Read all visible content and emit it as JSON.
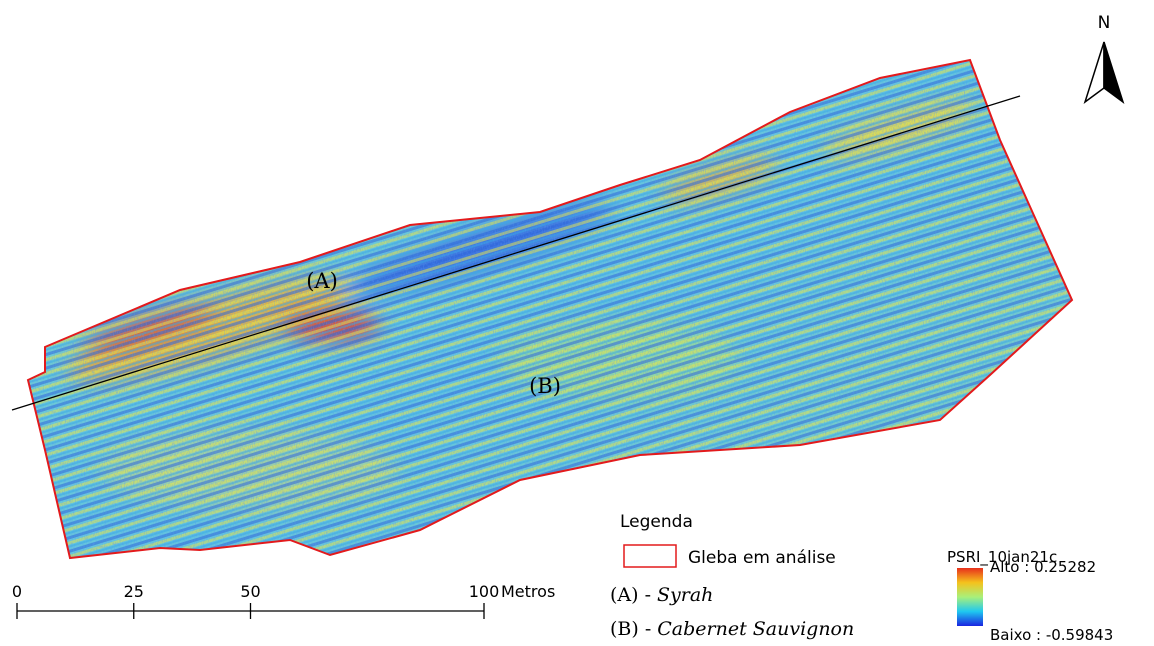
{
  "north": "N",
  "map_labels": [
    "(A)",
    "(B)"
  ],
  "legend": {
    "title": "Legenda",
    "boundary_label": "Gleba em análise",
    "items": [
      {
        "code": "(A) -",
        "name": "Syrah"
      },
      {
        "code": "(B) -",
        "name": "Cabernet Sauvignon"
      }
    ]
  },
  "colorbar": {
    "title": "PSRI_10jan21c",
    "high_label": "Alto : 0.25282",
    "low_label": "Baixo : -0.59843"
  },
  "scale": {
    "ticks": [
      0,
      25,
      50,
      100
    ],
    "unit": "Metros"
  }
}
